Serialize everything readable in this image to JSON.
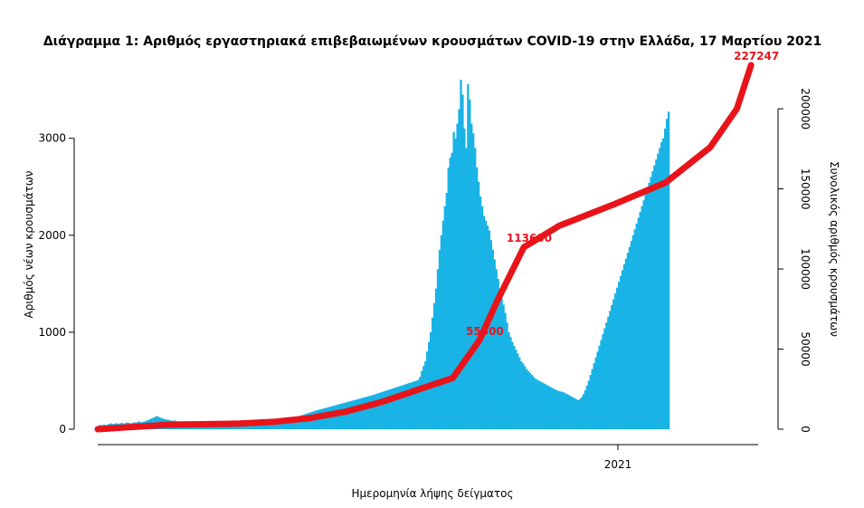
{
  "chart_data": {
    "type": "bar",
    "title": "Διάγραμμα 1: Αριθμός εργαστηριακά επιβεβαιωμένων κρουσμάτων COVID-19 στην Ελλάδα, 17 Μαρτίου 2021",
    "xlabel": "Ημερομηνία λήψης δείγματος",
    "ylabel": "Αριθμός νέων κρουσμάτων",
    "y2label": "Συνολικός αριθμός κρουσμάτων",
    "ylim": [
      0,
      3800
    ],
    "y2lim": [
      0,
      230000
    ],
    "y_ticks": [
      0,
      1000,
      2000,
      3000
    ],
    "y2_ticks": [
      0,
      50000,
      100000,
      150000,
      200000
    ],
    "x_tick_labels": [
      "2021"
    ],
    "x_tick_positions": [
      293
    ],
    "colors": {
      "bars": "#19b3e6",
      "cumulative": "#e8141a"
    },
    "series": [
      {
        "name": "new",
        "type": "bar",
        "x_start": 0,
        "values": [
          40,
          45,
          38,
          50,
          42,
          48,
          55,
          60,
          52,
          58,
          62,
          55,
          60,
          65,
          58,
          62,
          70,
          66,
          60,
          64,
          72,
          68,
          75,
          80,
          70,
          76,
          82,
          88,
          95,
          105,
          112,
          120,
          130,
          135,
          125,
          118,
          110,
          105,
          100,
          98,
          92,
          88,
          85,
          90,
          82,
          78,
          80,
          75,
          70,
          72,
          68,
          65,
          62,
          60,
          58,
          56,
          54,
          55,
          52,
          50,
          48,
          47,
          46,
          45,
          44,
          44,
          43,
          43,
          42,
          42,
          42,
          41,
          41,
          41,
          40,
          40,
          40,
          40,
          40,
          40,
          41,
          42,
          43,
          44,
          45,
          46,
          47,
          48,
          50,
          52,
          54,
          56,
          58,
          60,
          62,
          64,
          66,
          68,
          70,
          72,
          75,
          78,
          82,
          86,
          90,
          95,
          100,
          105,
          110,
          115,
          120,
          125,
          130,
          136,
          142,
          148,
          154,
          160,
          166,
          172,
          178,
          184,
          190,
          196,
          200,
          205,
          210,
          215,
          220,
          225,
          230,
          235,
          240,
          245,
          250,
          255,
          260,
          265,
          270,
          275,
          280,
          285,
          290,
          295,
          300,
          305,
          310,
          315,
          320,
          325,
          330,
          335,
          340,
          345,
          350,
          356,
          362,
          368,
          374,
          380,
          386,
          392,
          398,
          404,
          410,
          416,
          422,
          428,
          434,
          440,
          446,
          452,
          458,
          464,
          470,
          476,
          482,
          488,
          494,
          500,
          510,
          540,
          600,
          650,
          700,
          800,
          900,
          1000,
          1150,
          1300,
          1450,
          1650,
          1850,
          2000,
          2150,
          2300,
          2438,
          2697,
          2800,
          2850,
          3066,
          2996,
          3150,
          3300,
          3603,
          3450,
          3100,
          2900,
          3558,
          3400,
          3150,
          3050,
          2900,
          2700,
          2550,
          2400,
          2300,
          2200,
          2150,
          2100,
          2050,
          1950,
          1850,
          1750,
          1650,
          1550,
          1450,
          1350,
          1285,
          1200,
          1100,
          1000,
          950,
          900,
          860,
          820,
          780,
          740,
          700,
          680,
          650,
          620,
          600,
          580,
          560,
          540,
          520,
          510,
          500,
          490,
          480,
          470,
          460,
          450,
          440,
          430,
          420,
          410,
          400,
          395,
          390,
          385,
          380,
          370,
          360,
          350,
          340,
          330,
          320,
          310,
          300,
          310,
          330,
          360,
          400,
          450,
          500,
          560,
          620,
          680,
          740,
          800,
          860,
          920,
          980,
          1040,
          1100,
          1160,
          1220,
          1280,
          1340,
          1400,
          1460,
          1520,
          1580,
          1640,
          1700,
          1760,
          1820,
          1880,
          1940,
          2000,
          2060,
          2120,
          2180,
          2240,
          2300,
          2360,
          2420,
          2480,
          2540,
          2600,
          2660,
          2720,
          2780,
          2840,
          2900,
          2960,
          3000,
          3100,
          3200,
          3274
        ]
      },
      {
        "name": "cumulative",
        "type": "line",
        "points": [
          [
            0,
            0
          ],
          [
            40,
            2800
          ],
          [
            80,
            3500
          ],
          [
            100,
            4700
          ],
          [
            120,
            7000
          ],
          [
            140,
            11000
          ],
          [
            160,
            17000
          ],
          [
            180,
            24500
          ],
          [
            200,
            32000
          ],
          [
            215,
            55500
          ],
          [
            225,
            80000
          ],
          [
            240,
            113600
          ],
          [
            260,
            127000
          ],
          [
            290,
            140000
          ],
          [
            320,
            154000
          ],
          [
            345,
            176000
          ],
          [
            360,
            200000
          ],
          [
            368,
            227247
          ]
        ]
      }
    ],
    "annotations": [
      {
        "text": "227247",
        "x": 368,
        "y2": 227247
      },
      {
        "text": "113600",
        "x": 240,
        "y2": 113600
      },
      {
        "text": "55500",
        "x": 215,
        "y2": 55500
      }
    ]
  }
}
